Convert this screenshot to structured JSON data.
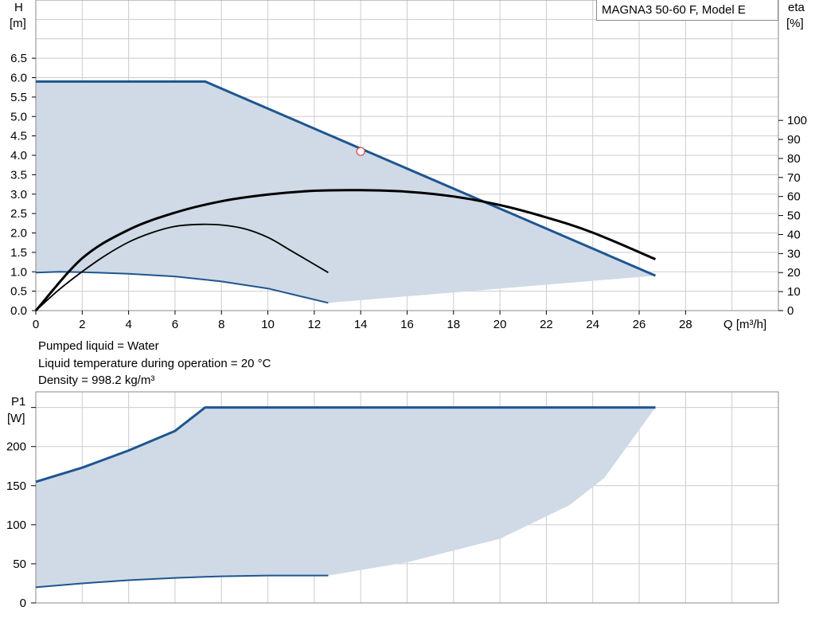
{
  "title": "MAGNA3 50-60 F, Model E",
  "notes": [
    "Pumped liquid = Water",
    "Liquid temperature during operation = 20 °C",
    "Density = 998.2 kg/m³"
  ],
  "colors": {
    "curve_blue": "#1f5591",
    "area_fill": "#cfdae6",
    "efficiency": "#000000",
    "grid": "#cccccc",
    "duty_point": "#e04040"
  },
  "chart_data": [
    {
      "type": "line",
      "name": "head",
      "x_axis": {
        "label": "Q [m³/h]",
        "range": [
          0,
          32
        ],
        "ticks": [
          0,
          2,
          4,
          6,
          8,
          10,
          12,
          14,
          16,
          18,
          20,
          22,
          24,
          26,
          28
        ]
      },
      "y_axis": {
        "label_top": "H",
        "label_unit": "[m]",
        "range": [
          0,
          8
        ],
        "ticks": [
          0,
          0.5,
          1,
          1.5,
          2,
          2.5,
          3,
          3.5,
          4,
          4.5,
          5,
          5.5,
          6,
          6.5
        ],
        "tick_labels": [
          "0.0",
          "0.5",
          "1.0",
          "1.5",
          "2.0",
          "2.5",
          "3.0",
          "3.5",
          "4.0",
          "4.5",
          "5.0",
          "5.5",
          "6.0",
          "6.5"
        ]
      },
      "y2_axis": {
        "label_top": "eta",
        "label_unit": "[%]",
        "range": [
          0,
          163.3
        ],
        "ticks": [
          0,
          10,
          20,
          30,
          40,
          50,
          60,
          70,
          80,
          90,
          100
        ]
      },
      "grid": true,
      "max_head_curve": [
        [
          0,
          5.9
        ],
        [
          7.3,
          5.9
        ],
        [
          26.7,
          0.9
        ]
      ],
      "min_head_curve": [
        [
          0,
          0.98
        ],
        [
          1,
          1
        ],
        [
          2,
          0.99
        ],
        [
          4,
          0.95
        ],
        [
          6,
          0.88
        ],
        [
          8,
          0.75
        ],
        [
          10,
          0.57
        ],
        [
          12.6,
          0.2
        ]
      ],
      "area_lower_edge": [
        [
          12.6,
          0.2
        ],
        [
          26.7,
          0.9
        ]
      ],
      "efficiency_max": [
        [
          0,
          0
        ],
        [
          2,
          27.5
        ],
        [
          4,
          42.5
        ],
        [
          6,
          51.5
        ],
        [
          8,
          57.5
        ],
        [
          10,
          61
        ],
        [
          12,
          63
        ],
        [
          14,
          63.3
        ],
        [
          16,
          62.5
        ],
        [
          18,
          60
        ],
        [
          20,
          55.5
        ],
        [
          22,
          49
        ],
        [
          24,
          41
        ],
        [
          26.7,
          27
        ]
      ],
      "efficiency_min": [
        [
          0,
          0
        ],
        [
          1,
          11
        ],
        [
          2,
          20.5
        ],
        [
          3,
          29
        ],
        [
          4,
          36
        ],
        [
          5,
          41
        ],
        [
          6,
          44.3
        ],
        [
          7,
          45.3
        ],
        [
          8,
          45
        ],
        [
          9,
          43
        ],
        [
          10,
          38.5
        ],
        [
          11,
          31.5
        ],
        [
          12.6,
          20
        ]
      ],
      "duty_point": {
        "Q": 14,
        "H": 4.1
      }
    },
    {
      "type": "line",
      "name": "power",
      "x_axis": {
        "range": [
          0,
          32
        ]
      },
      "y_axis": {
        "label_top": "P1",
        "label_unit": "[W]",
        "range": [
          0,
          270
        ],
        "ticks": [
          0,
          50,
          100,
          150,
          200
        ],
        "tick_labels": [
          "0",
          "50",
          "100",
          "150",
          "200"
        ],
        "extra_tick": 250
      },
      "grid": true,
      "max_power_curve": [
        [
          0,
          155
        ],
        [
          2,
          173
        ],
        [
          4,
          195
        ],
        [
          6,
          220
        ],
        [
          7.3,
          250
        ],
        [
          26.7,
          250
        ]
      ],
      "min_power_curve": [
        [
          0,
          20
        ],
        [
          2,
          25
        ],
        [
          4,
          29
        ],
        [
          6,
          32
        ],
        [
          8,
          34
        ],
        [
          10,
          35
        ],
        [
          12.6,
          35
        ]
      ],
      "area_lower_edge": [
        [
          12.6,
          35
        ],
        [
          16,
          52
        ],
        [
          20,
          82
        ],
        [
          23,
          125
        ],
        [
          24.5,
          160
        ],
        [
          26.7,
          250
        ]
      ]
    }
  ]
}
